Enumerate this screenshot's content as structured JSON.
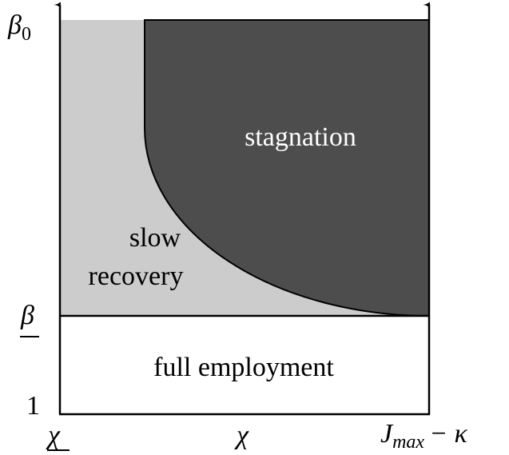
{
  "y_axis": {
    "top": {
      "symbol": "β",
      "subscript": "0"
    },
    "middle": "β",
    "bottom": "1"
  },
  "x_axis": {
    "left": "χ",
    "middle": "χ",
    "right": {
      "symbol": "J",
      "subscript": "max",
      "rest": "− κ"
    }
  },
  "regions": {
    "stagnation": "stagnation",
    "slow_recovery": [
      "slow",
      "recovery"
    ],
    "full_employment": "full employment"
  }
}
